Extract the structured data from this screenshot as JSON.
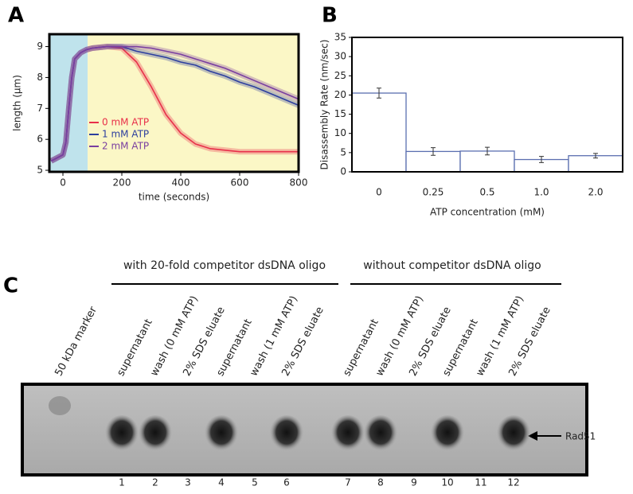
{
  "panel_labels": [
    "A",
    "B",
    "C"
  ],
  "chart_data": [
    {
      "type": "line",
      "xlabel": "time (seconds)",
      "ylabel": "length (μm)",
      "xlim": [
        -46,
        800
      ],
      "ylim": [
        4.95,
        9.4
      ],
      "xticks": [
        0,
        200,
        400,
        600,
        800
      ],
      "yticks": [
        5,
        6,
        7,
        8,
        9
      ],
      "regions": [
        {
          "xlim": [
            -46,
            84
          ],
          "color": "#bfe3ec"
        },
        {
          "xlim": [
            84,
            800
          ],
          "color": "#fbf7c6"
        }
      ],
      "legend": "lower-left",
      "x": [
        -40,
        -20,
        0,
        10,
        20,
        30,
        40,
        60,
        80,
        100,
        150,
        200,
        250,
        300,
        350,
        400,
        450,
        500,
        550,
        600,
        650,
        700,
        750,
        800
      ],
      "series": [
        {
          "name": "0 mM ATP",
          "color": "#e8304a",
          "values": [
            5.3,
            5.4,
            5.5,
            5.9,
            7.0,
            8.0,
            8.6,
            8.8,
            8.9,
            8.95,
            9.0,
            8.95,
            8.5,
            7.7,
            6.8,
            6.2,
            5.85,
            5.7,
            5.65,
            5.6,
            5.6,
            5.6,
            5.6,
            5.6
          ]
        },
        {
          "name": "1 mM ATP",
          "color": "#2d3f9e",
          "values": [
            5.3,
            5.4,
            5.5,
            5.9,
            7.0,
            8.0,
            8.6,
            8.8,
            8.9,
            8.95,
            9.0,
            9.0,
            8.85,
            8.75,
            8.65,
            8.5,
            8.4,
            8.2,
            8.05,
            7.85,
            7.7,
            7.5,
            7.3,
            7.1
          ]
        },
        {
          "name": "2 mM ATP",
          "color": "#7a3fa0",
          "values": [
            5.3,
            5.4,
            5.5,
            5.9,
            7.0,
            8.0,
            8.6,
            8.8,
            8.9,
            8.95,
            9.0,
            9.0,
            9.0,
            8.95,
            8.85,
            8.75,
            8.6,
            8.45,
            8.3,
            8.1,
            7.9,
            7.7,
            7.5,
            7.3
          ]
        }
      ]
    },
    {
      "type": "bar",
      "xlabel": "ATP concentration (mM)",
      "ylabel": "Disassembly Rate (nm/sec)",
      "categories": [
        "0",
        "0.25",
        "0.5",
        "1.0",
        "2.0"
      ],
      "values": [
        20.5,
        5.3,
        5.4,
        3.2,
        4.2
      ],
      "errors": [
        1.3,
        1.0,
        1.0,
        0.8,
        0.6
      ],
      "color": "#5b6fb0",
      "ylim": [
        0,
        35
      ],
      "yticks": [
        0,
        5,
        10,
        15,
        20,
        25,
        30,
        35
      ]
    }
  ],
  "gel": {
    "group_labels": [
      "with 20-fold competitor dsDNA oligo",
      "without competitor dsDNA oligo"
    ],
    "lane_labels": [
      "50 kDa marker",
      "supernatant",
      "wash (0 mM ATP)",
      "2% SDS eluate",
      "supernatant",
      "wash (1 mM ATP)",
      "2% SDS eluate",
      "supernatant",
      "wash (0 mM ATP)",
      "2% SDS eluate",
      "supernatant",
      "wash (1 mM ATP)",
      "2% SDS eluate"
    ],
    "lane_numbers": [
      1,
      2,
      3,
      4,
      5,
      6,
      7,
      8,
      9,
      10,
      11,
      12
    ],
    "band_label": "Rad51"
  }
}
